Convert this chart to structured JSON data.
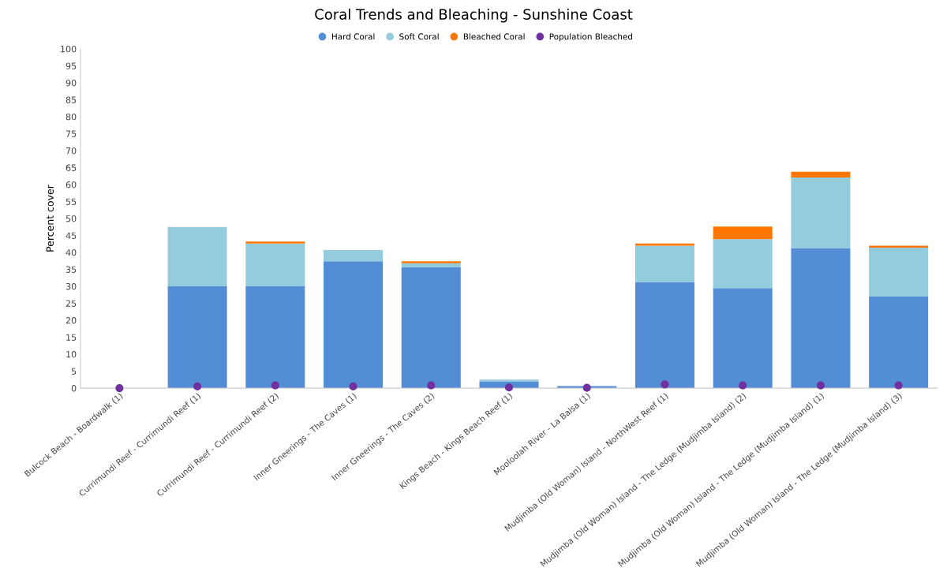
{
  "chart_data": {
    "type": "bar",
    "title": "Coral Trends and Bleaching - Sunshine Coast",
    "ylabel": "Percent cover",
    "categories": [
      "Bulcock Beach - Boardwalk (1)",
      "Currimundi Reef - Currimundi Reef (1)",
      "Currimundi Reef - Currimundi Reef (2)",
      "Inner Gneerings - The Caves (1)",
      "Inner Gneerings - The Caves (2)",
      "Kings Beach - Kings Beach Reef (1)",
      "Mooloolah River - La Balsa (1)",
      "Mudjimba (Old Woman) Island - NorthWest Reef (1)",
      "Mudjimba (Old Woman) Island - The Ledge (Mudjimba Island) (2)",
      "Mudjimba (Old Woman) Island - The Ledge (Mudjimba Island) (1)",
      "Mudjimba (Old Woman) Island - The Ledge (Mudjimba Island) (3)"
    ],
    "stacked": true,
    "series": [
      {
        "name": "Hard Coral",
        "color": "#538dd5",
        "values": [
          0,
          30,
          30,
          37.4,
          35.6,
          2.0,
          0.6,
          31.3,
          29.5,
          41.3,
          27
        ]
      },
      {
        "name": "Soft Coral",
        "color": "#93cddd",
        "values": [
          0,
          17.5,
          12.6,
          3.3,
          1.2,
          0.5,
          0,
          10.7,
          14.4,
          20.8,
          14.4
        ]
      },
      {
        "name": "Bleached Coral",
        "color": "#ff7700",
        "values": [
          0,
          0,
          0.6,
          0,
          0.6,
          0,
          0,
          0.6,
          3.7,
          1.7,
          0.6
        ]
      },
      {
        "name": "Population Bleached",
        "type": "scatter",
        "color": "#7030a0",
        "values": [
          0,
          0.5,
          0.8,
          0.5,
          0.8,
          0.2,
          0.1,
          1.1,
          0.8,
          0.8,
          0.8
        ]
      }
    ],
    "ylim": [
      0,
      100
    ],
    "yticks": [
      0,
      5,
      10,
      15,
      20,
      25,
      30,
      35,
      40,
      45,
      50,
      55,
      60,
      65,
      70,
      75,
      80,
      85,
      90,
      95,
      100
    ],
    "grid": false,
    "legend": "top",
    "marker": "circle"
  }
}
